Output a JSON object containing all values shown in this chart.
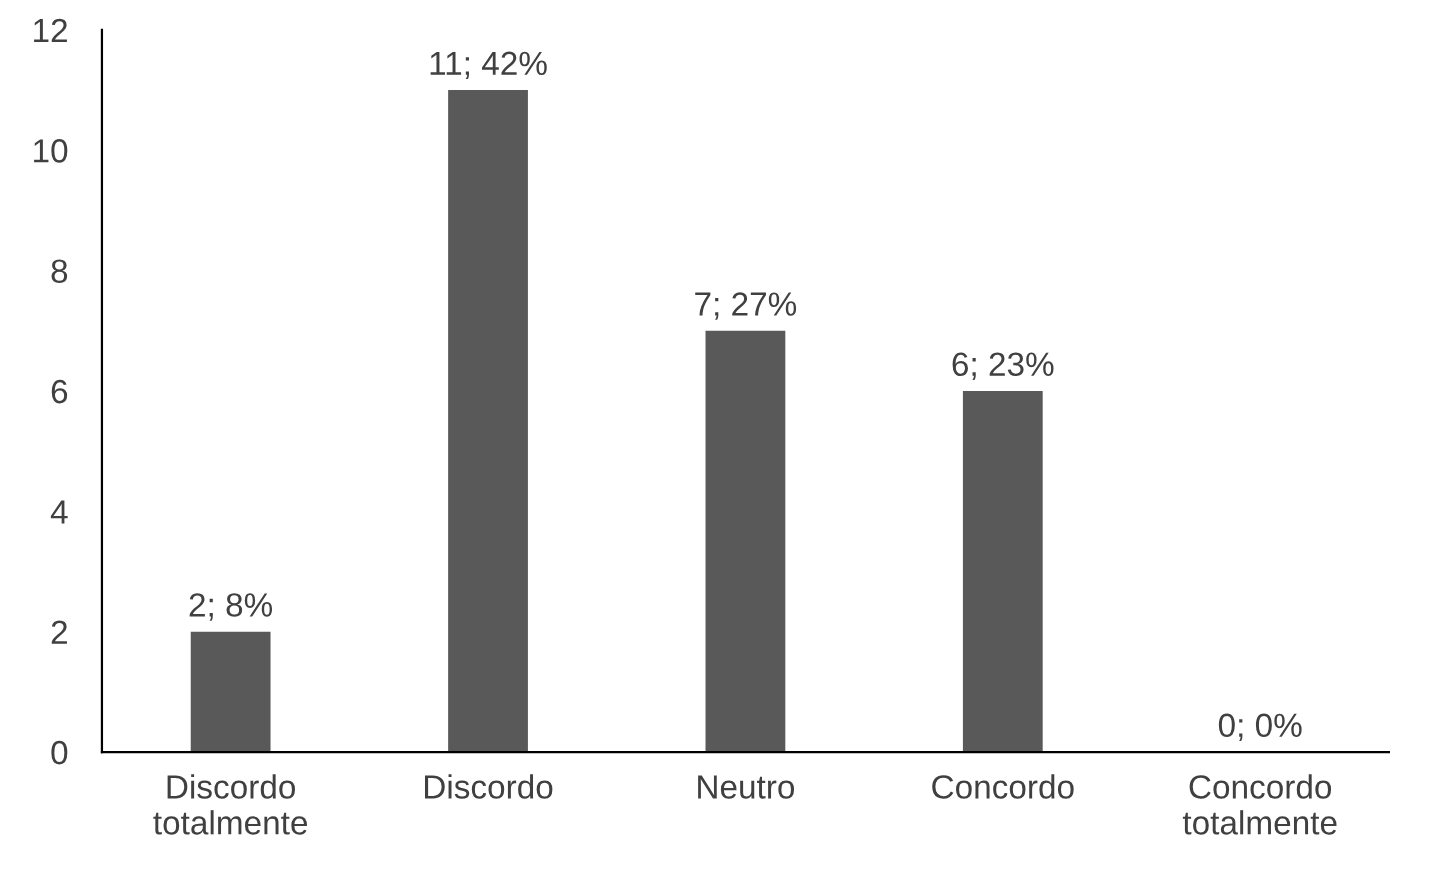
{
  "chart_data": {
    "type": "bar",
    "categories": [
      "Discordo\ntotalmente",
      "Discordo",
      "Neutro",
      "Concordo",
      "Concordo\ntotalmente"
    ],
    "values": [
      2,
      11,
      7,
      6,
      0
    ],
    "value_labels": [
      "2; 8%",
      "11; 42%",
      "7; 27%",
      "6; 23%",
      "0; 0%"
    ],
    "color": "#595959",
    "ylim": [
      0,
      12
    ],
    "yticks": [
      0,
      2,
      4,
      6,
      8,
      10,
      12
    ],
    "grid": false,
    "legend": false
  }
}
